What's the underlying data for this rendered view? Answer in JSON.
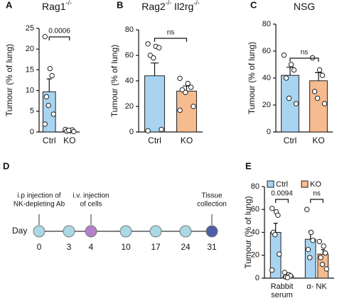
{
  "chart_data": [
    {
      "type": "bar",
      "panel": "A",
      "title": [
        "Rag1",
        "-/-"
      ],
      "ylabel": "Tumour (% of lung)",
      "categories": [
        "Ctrl",
        "KO"
      ],
      "values": [
        9.7,
        0.3
      ],
      "errors": [
        3.1,
        0.1
      ],
      "colors": [
        "#a8d4f2",
        "#f6bb8e"
      ],
      "points": [
        [
          23,
          15.3,
          13.6,
          8.5,
          6.4,
          4.3,
          1.9
        ],
        [
          0.6,
          0.3,
          0.5,
          0.2,
          0.4,
          0.1
        ]
      ],
      "ylim": [
        0,
        25
      ],
      "yticks": [
        0,
        5,
        10,
        15,
        20,
        25
      ],
      "comparison_label": "0.0006"
    },
    {
      "type": "bar",
      "panel": "B",
      "title": [
        "Rag2",
        "-/-",
        " Il2rg",
        "-/-"
      ],
      "ylabel": "Tumour (% of lung)",
      "categories": [
        "Ctrl",
        "KO"
      ],
      "values": [
        44,
        32
      ],
      "errors": [
        10,
        4
      ],
      "colors": [
        "#a8d4f2",
        "#f6bb8e"
      ],
      "points": [
        [
          69,
          67,
          66,
          60,
          58,
          2,
          1
        ],
        [
          42,
          38,
          35,
          33,
          31,
          20,
          17
        ]
      ],
      "ylim": [
        0,
        80
      ],
      "yticks": [
        0,
        20,
        40,
        60,
        80
      ],
      "comparison_label": "ns"
    },
    {
      "type": "bar",
      "panel": "C",
      "title": [
        "NSG"
      ],
      "ylabel": "Tumour (% of lung)",
      "categories": [
        "Ctrl",
        "KO"
      ],
      "values": [
        42,
        38
      ],
      "errors": [
        6,
        6
      ],
      "colors": [
        "#a8d4f2",
        "#f6bb8e"
      ],
      "points": [
        [
          57,
          50,
          46,
          40,
          25,
          21
        ],
        [
          55,
          46,
          42,
          30,
          25,
          21
        ]
      ],
      "ylim": [
        0,
        80
      ],
      "yticks": [
        0,
        20,
        40,
        60,
        80
      ],
      "comparison_label": "ns"
    },
    {
      "type": "timeline",
      "panel": "D",
      "xlabel": "Day",
      "categories": [
        "0",
        "3",
        "4",
        "10",
        "17",
        "24",
        "31"
      ],
      "colors": [
        "#aad9e6",
        "#aad9e6",
        "#b57fc9",
        "#aad9e6",
        "#aad9e6",
        "#aad9e6",
        "#4c5fa6"
      ],
      "annotations": [
        [
          "i.p injection of",
          "NK-depleting Ab"
        ],
        null,
        [
          "i.v. injection",
          "of cells"
        ],
        null,
        null,
        null,
        [
          "Tissue",
          "collection"
        ]
      ]
    },
    {
      "type": "grouped_bar",
      "panel": "E",
      "ylabel": "Tumour (% of lung)",
      "categories": [
        [
          "Rabbit",
          "serum"
        ],
        [
          "α- NK"
        ]
      ],
      "series": [
        {
          "name": "Ctrl",
          "color": "#a8d4f2",
          "values": [
            40,
            34
          ],
          "errors": [
            8,
            7
          ],
          "points": [
            [
              61,
              58,
              55,
              40,
              38,
              21,
              7
            ],
            [
              60,
              40,
              33,
              25,
              18
            ]
          ]
        },
        {
          "name": "KO",
          "color": "#f6bb8e",
          "values": [
            2,
            21
          ],
          "errors": [
            1,
            4
          ],
          "points": [
            [
              5,
              3,
              2,
              1,
              0.5
            ],
            [
              32,
              28,
              22,
              18,
              12,
              8
            ]
          ]
        }
      ],
      "ylim": [
        0,
        80
      ],
      "yticks": [
        0,
        20,
        40,
        60,
        80
      ],
      "comparison_labels": [
        "0.0094",
        "ns"
      ],
      "legend": "top"
    }
  ]
}
